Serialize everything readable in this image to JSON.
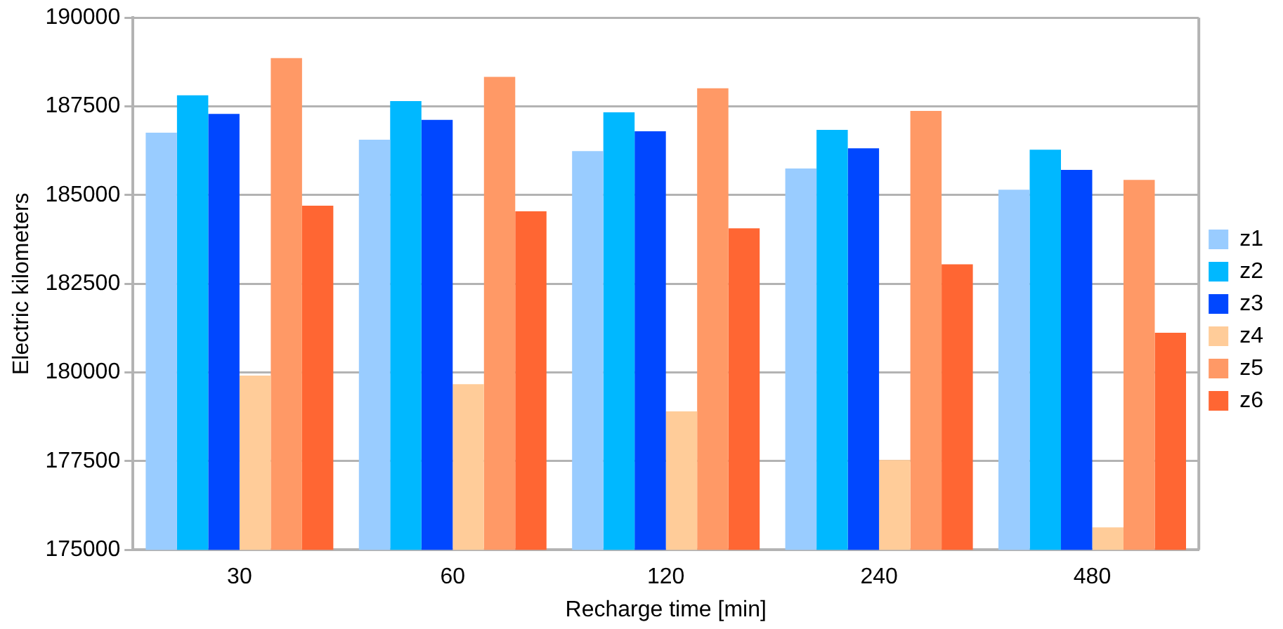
{
  "chart_data": {
    "type": "bar",
    "xlabel": "Recharge time [min]",
    "ylabel": "Electric kilometers",
    "categories": [
      "30",
      "60",
      "120",
      "240",
      "480"
    ],
    "series": [
      {
        "name": "z1",
        "color": "#99ccff",
        "values": [
          186760,
          186560,
          186240,
          185750,
          185150
        ]
      },
      {
        "name": "z2",
        "color": "#00b8ff",
        "values": [
          187810,
          187650,
          187330,
          186840,
          186280
        ]
      },
      {
        "name": "z3",
        "color": "#0047ff",
        "values": [
          187290,
          187120,
          186800,
          186320,
          185710
        ]
      },
      {
        "name": "z4",
        "color": "#ffcc99",
        "values": [
          179910,
          179670,
          178900,
          177530,
          175630
        ]
      },
      {
        "name": "z5",
        "color": "#ff9966",
        "values": [
          188860,
          188330,
          188010,
          187370,
          185430
        ]
      },
      {
        "name": "z6",
        "color": "#ff6633",
        "values": [
          184700,
          184540,
          184060,
          183050,
          181120
        ]
      }
    ],
    "ylim": [
      175000,
      190000
    ],
    "yticks": [
      175000,
      177500,
      180000,
      182500,
      185000,
      187500,
      190000
    ],
    "grid": "y",
    "legend": "right"
  }
}
